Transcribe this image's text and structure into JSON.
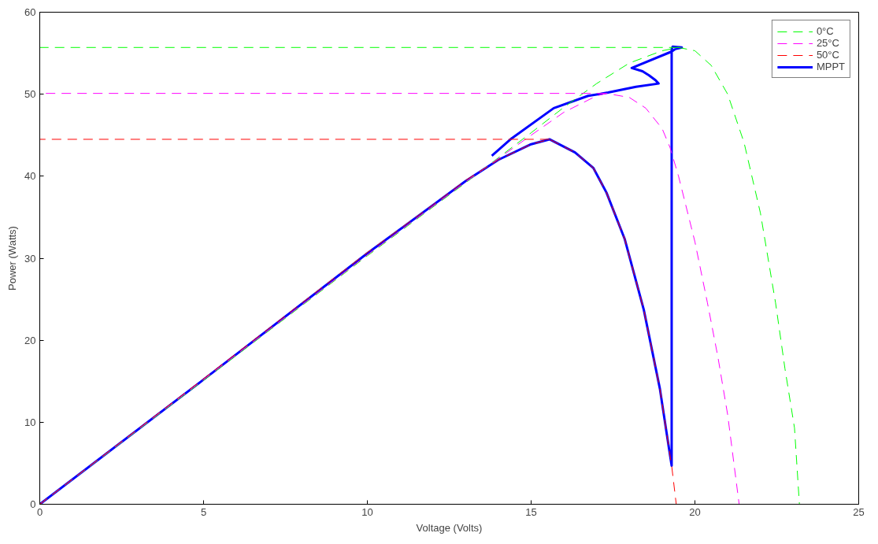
{
  "chart_data": {
    "type": "line",
    "xlabel": "Voltage (Volts)",
    "ylabel": "Power (Watts)",
    "xlim": [
      0,
      25
    ],
    "ylim": [
      0,
      60
    ],
    "xticks": [
      0,
      5,
      10,
      15,
      20,
      25
    ],
    "yticks": [
      0,
      10,
      20,
      30,
      40,
      50,
      60
    ],
    "grid": false,
    "legend": "top right",
    "marker": "none",
    "series": [
      {
        "name": "0°C",
        "color": "#00ff00",
        "line_style": "dashed",
        "x": [
          0,
          5,
          10,
          13,
          15,
          16,
          17,
          18,
          19,
          19.5,
          20,
          20.5,
          21,
          21.5,
          22,
          22.46,
          22.75,
          23.04,
          23.19
        ],
        "values": [
          0,
          15.1,
          30.3,
          39.2,
          45.3,
          48.4,
          51.3,
          53.8,
          55.3,
          55.7,
          55.3,
          53.5,
          50,
          44.1,
          35.5,
          24.6,
          16.5,
          9.3,
          0
        ]
      },
      {
        "name": "25°C",
        "color": "#ff00ff",
        "line_style": "dashed",
        "x": [
          0,
          5,
          10,
          13,
          15,
          16,
          17,
          17.3,
          18,
          18.5,
          19,
          19.24,
          19.5,
          20,
          20.38,
          20.7,
          21,
          21.35
        ],
        "values": [
          0,
          15.2,
          30.4,
          39.3,
          45,
          47.8,
          49.8,
          50.1,
          49.6,
          48.3,
          45.8,
          43.5,
          40,
          32,
          24.6,
          18,
          10.9,
          0
        ]
      },
      {
        "name": "50°C",
        "color": "#ff0000",
        "line_style": "dashed",
        "x": [
          0,
          5,
          10,
          12,
          13,
          14,
          15,
          15.56,
          16.34,
          16.9,
          17.3,
          17.86,
          18.44,
          18.93,
          19.17,
          19.29,
          19.43
        ],
        "values": [
          0,
          15.3,
          30.7,
          36.5,
          39.5,
          42,
          43.9,
          44.5,
          42.9,
          41,
          38,
          32.3,
          23.7,
          14.1,
          7.8,
          4.7,
          0
        ]
      },
      {
        "name": "MPPT",
        "color": "#0000ff",
        "line_style": "solid",
        "x": [
          0,
          5,
          10,
          13,
          14,
          15,
          15.56,
          16.34,
          16.9,
          17.3,
          17.86,
          18.44,
          18.93,
          19.17,
          19.29,
          19.29,
          19.32,
          19.6,
          19.4,
          19.29,
          18.07,
          18.4,
          18.6,
          18.8,
          18.89,
          18.2,
          17.35,
          16.74,
          15.69,
          14.4,
          13.8
        ],
        "values": [
          0,
          15.2,
          30.6,
          39.4,
          42,
          43.9,
          44.5,
          42.9,
          41,
          38,
          32.3,
          23.7,
          14.1,
          7.8,
          4.7,
          55.5,
          55.8,
          55.7,
          55.5,
          55.2,
          53.2,
          52.8,
          52.3,
          51.7,
          51.3,
          50.9,
          50.2,
          49.8,
          48.3,
          44.6,
          42.5
        ]
      },
      {
        "color": "#00ff00",
        "line_style": "dashed",
        "x": [
          19.5,
          0
        ],
        "values": [
          55.7,
          55.7
        ]
      },
      {
        "color": "#ff00ff",
        "line_style": "dashed",
        "x": [
          17.3,
          0
        ],
        "values": [
          50.1,
          50.1
        ]
      },
      {
        "color": "#ff0000",
        "line_style": "dashed",
        "x": [
          15.56,
          0
        ],
        "values": [
          44.5,
          44.5
        ]
      }
    ]
  }
}
